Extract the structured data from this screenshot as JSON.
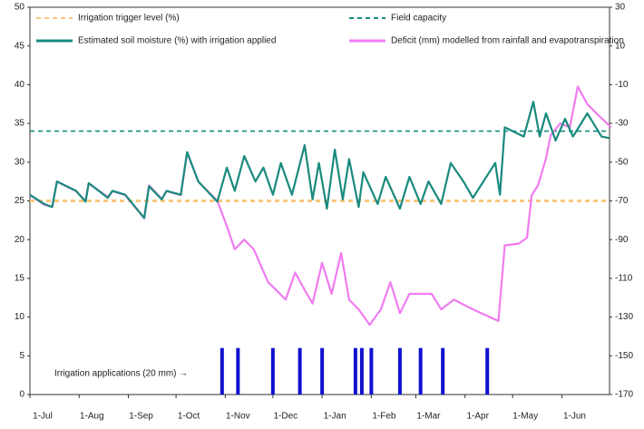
{
  "chart_data": {
    "type": "line",
    "xlim": [
      0,
      365
    ],
    "xticks": [
      {
        "value": 0,
        "label": "1-Jul"
      },
      {
        "value": 31,
        "label": "1-Aug"
      },
      {
        "value": 62,
        "label": "1-Sep"
      },
      {
        "value": 92,
        "label": "1-Oct"
      },
      {
        "value": 123,
        "label": "1-Nov"
      },
      {
        "value": 153,
        "label": "1-Dec"
      },
      {
        "value": 184,
        "label": "1-Jan"
      },
      {
        "value": 215,
        "label": "1-Feb"
      },
      {
        "value": 243,
        "label": "1-Mar"
      },
      {
        "value": 274,
        "label": "1-Apr"
      },
      {
        "value": 304,
        "label": "1-May"
      },
      {
        "value": 335,
        "label": "1-Jun"
      }
    ],
    "ylim": [
      0,
      50
    ],
    "yticks": [
      0,
      5,
      10,
      15,
      20,
      25,
      30,
      35,
      40,
      45,
      50
    ],
    "y2lim": [
      -170,
      30
    ],
    "y2ticks": [
      -170,
      -150,
      -130,
      -110,
      -90,
      -70,
      -50,
      -30,
      -10,
      10,
      30
    ],
    "annotation": "Irrigation applications (20 mm) →",
    "series": [
      {
        "name": "Irrigation trigger level (%)",
        "type": "line",
        "style": "dashed",
        "color": "#f9c77e",
        "x": [
          0,
          365
        ],
        "values": [
          25,
          25
        ]
      },
      {
        "name": "Field capacity",
        "type": "line",
        "style": "dashed",
        "color": "#1a8a7e",
        "x": [
          0,
          365
        ],
        "values": [
          34,
          34
        ]
      },
      {
        "name": "Estimated soil moisture (%) with irrigation applied",
        "type": "line",
        "style": "solid",
        "color": "#1a8a7e",
        "x": [
          0,
          9,
          14,
          17,
          29,
          35,
          37,
          49,
          52,
          60,
          72,
          75,
          83,
          86,
          95,
          99,
          106,
          118,
          124,
          129,
          135,
          142,
          147,
          153,
          158,
          165,
          173,
          178,
          182,
          187,
          192,
          197,
          201,
          207,
          210,
          219,
          224,
          233,
          239,
          246,
          251,
          259,
          265,
          273,
          279,
          293,
          296,
          299,
          311,
          317,
          321,
          325,
          331,
          337,
          342,
          351,
          360,
          365
        ],
        "values": [
          25.8,
          24.6,
          24.2,
          27.5,
          26.3,
          24.9,
          27.3,
          25.4,
          26.3,
          25.8,
          22.8,
          26.9,
          25.2,
          26.3,
          25.8,
          31.3,
          27.5,
          24.9,
          29.3,
          26.3,
          30.8,
          27.5,
          29.3,
          25.8,
          29.9,
          25.8,
          32.2,
          25.2,
          29.9,
          24.0,
          31.6,
          25.2,
          30.4,
          24.2,
          28.7,
          24.6,
          28.1,
          24.0,
          28.1,
          24.6,
          27.5,
          24.6,
          29.9,
          27.5,
          25.4,
          29.9,
          25.8,
          34.5,
          33.3,
          37.8,
          33.3,
          36.3,
          32.8,
          35.6,
          33.3,
          36.3,
          33.3,
          33.1
        ]
      },
      {
        "name": "Deficit (mm) modelled from rainfall and evapotranspiration",
        "type": "line",
        "style": "solid",
        "color": "#f07cf0",
        "axis": "y2",
        "x": [
          0,
          9,
          14,
          17,
          29,
          35,
          37,
          49,
          52,
          60,
          72,
          75,
          83,
          86,
          95,
          99,
          106,
          118,
          124,
          129,
          135,
          141,
          150,
          155,
          161,
          167,
          173,
          178,
          184,
          190,
          196,
          201,
          207,
          214,
          221,
          227,
          233,
          239,
          246,
          253,
          259,
          267,
          279,
          295,
          299,
          308,
          313,
          316,
          320,
          325,
          328,
          334,
          340,
          345,
          351,
          357,
          366
        ],
        "values": [
          -67,
          -72,
          -73,
          -60,
          -65,
          -70,
          -61,
          -68,
          -65,
          -67,
          -79,
          -62,
          -69,
          -65,
          -67,
          -45,
          -60,
          -70,
          -83,
          -95,
          -90,
          -95,
          -112,
          -116,
          -121,
          -107,
          -116,
          -123,
          -102,
          -118,
          -97,
          -121,
          -126,
          -134,
          -126,
          -112,
          -128,
          -118,
          -118,
          -118,
          -126,
          -121,
          -126,
          -132,
          -93,
          -92,
          -89,
          -67,
          -62,
          -48,
          -36,
          -30,
          -32,
          -11,
          -20,
          -25,
          -32
        ]
      },
      {
        "name": "Irrigation applications (20 mm)",
        "type": "bar",
        "color": "#1010d0",
        "x": [
          121,
          131,
          153,
          170,
          184,
          205,
          209,
          215,
          233,
          246,
          260,
          288
        ],
        "values": [
          6,
          6,
          6,
          6,
          6,
          6,
          6,
          6,
          6,
          6,
          6,
          6
        ]
      }
    ]
  }
}
